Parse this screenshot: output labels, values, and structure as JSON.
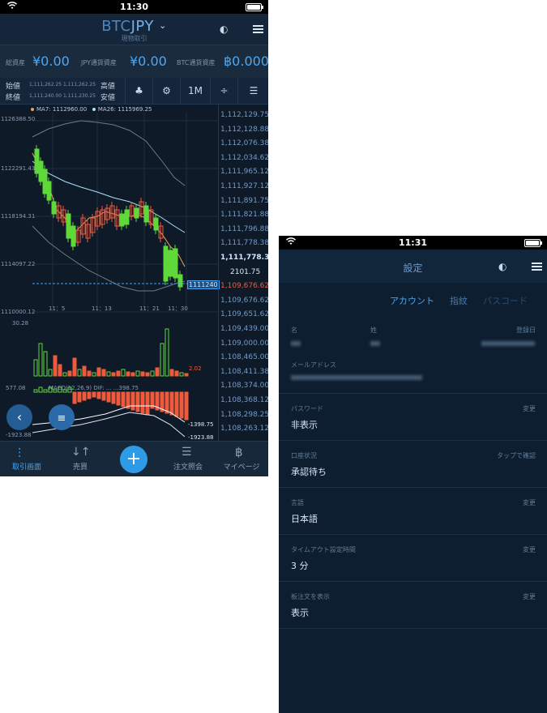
{
  "phone1": {
    "status_time": "11:30",
    "pair_left": "BTC",
    "pair_right": "JPY",
    "subtitle": "現物取引",
    "assets": [
      {
        "label": "総資産",
        "value": "¥0.00"
      },
      {
        "label": "JPY通貨資産",
        "value": "¥0.00"
      },
      {
        "label": "BTC通貨資産",
        "value": "฿0.0000"
      }
    ],
    "ohlc": {
      "open_label": "始値",
      "open_values": "1,111,262.25  1,111,262.25",
      "close_label": "終値",
      "close_values": "1,111,240.00  1,111,230.25",
      "high_label": "高値",
      "low_label": "安値",
      "interval": "1M"
    },
    "legend": {
      "ma7": "MA7: 1112960.00",
      "ma26": "MA26: 1115969.25"
    },
    "y_labels": [
      "1126388.50",
      "1122291.43",
      "1118194.31",
      "1114097.22",
      "1110000.12"
    ],
    "x_labels": [
      "11：5",
      "11：13",
      "11：21",
      "11：30"
    ],
    "current_price_tag": "1111240",
    "vol_labels": {
      "top": "30.28",
      "bottom": "2.02"
    },
    "macd_labels": {
      "left_top": "577.08",
      "left_bottom": "-1923.88",
      "title": "MACD(12,26,9)  DIF: ...  ...398.75",
      "r1": "-1398.75",
      "r2": "-1923.88"
    },
    "price_column": [
      "1,112,129.75",
      "1,112,128.88",
      "1,112,076.38",
      "1,112,034.62",
      "1,111,965.12",
      "1,111,927.12",
      "1,111,891.75",
      "1,111,821.88",
      "1,111,796.88",
      "1,111,778.38",
      "1,111,778.38",
      "2101.75",
      "1,109,676.62",
      "1,109,676.62",
      "1,109,651.62",
      "1,109,439.00",
      "1,109,000.00",
      "1,108,465.00",
      "1,108,411.38",
      "1,108,374.00",
      "1,108,368.12",
      "1,108,298.25",
      "1,108,263.12"
    ],
    "tabs": [
      {
        "label": "取引画面"
      },
      {
        "label": "売買"
      },
      {
        "label": "注文照会"
      },
      {
        "label": "マイページ"
      }
    ],
    "colors": {
      "up": "#5fd83a",
      "down": "#ef5a3c",
      "accent": "#4aa3ee"
    }
  },
  "chart_data": {
    "type": "candlestick",
    "x": [
      "11：5",
      "11：13",
      "11：21",
      "11：30"
    ],
    "ylim": [
      1110000.12,
      1126388.5
    ],
    "series": [
      {
        "name": "MA7",
        "last": 1112960.0
      },
      {
        "name": "MA26",
        "last": 1115969.25
      }
    ],
    "last_price": 1111240,
    "volume_range": [
      2.02,
      30.28
    ],
    "macd_range": [
      -1923.88,
      577.08
    ]
  },
  "phone2": {
    "status_time": "11:31",
    "title": "設定",
    "segments": [
      "アカウント",
      "指紋",
      "パスコード"
    ],
    "name_labels": {
      "last": "名",
      "first": "姓",
      "date": "登録日"
    },
    "email_label": "メールアドレス",
    "rows": [
      {
        "label": "パスワード",
        "action": "変更",
        "value": "非表示"
      },
      {
        "label": "口座状況",
        "action": "タップで確認",
        "value": "承認待ち"
      },
      {
        "label": "言語",
        "action": "変更",
        "value": "日本語"
      },
      {
        "label": "タイムアウト設定時間",
        "action": "変更",
        "value": "3 分"
      },
      {
        "label": "板注文を表示",
        "action": "変更",
        "value": "表示"
      }
    ]
  }
}
